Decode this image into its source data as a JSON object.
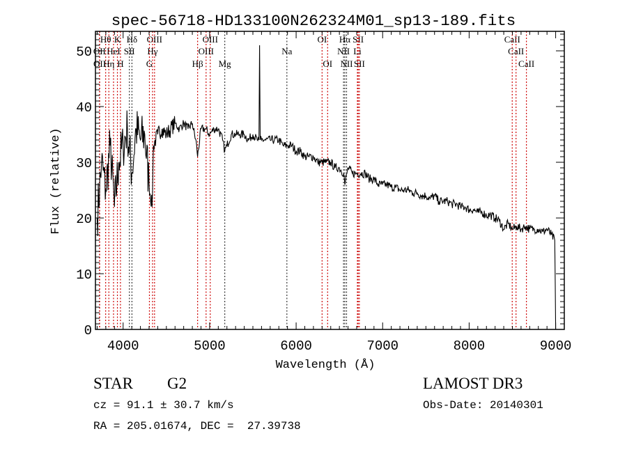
{
  "chart_data": {
    "type": "line",
    "title": "spec-56718-HD133100N262324M01_sp13-189.fits",
    "xlabel": "Wavelength (Å)",
    "ylabel": "Flux (relative)",
    "xlim": [
      3680,
      9100
    ],
    "ylim": [
      0,
      53.5
    ],
    "grid": false,
    "x_ticks": [
      "4000",
      "5000",
      "6000",
      "7000",
      "8000",
      "9000"
    ],
    "x_tick_values": [
      4000,
      5000,
      6000,
      7000,
      8000,
      9000
    ],
    "y_ticks": [
      "0",
      "10",
      "20",
      "30",
      "40",
      "50"
    ],
    "y_tick_values": [
      0,
      10,
      20,
      30,
      40,
      50
    ],
    "series": [
      {
        "name": "spectrum",
        "x": [
          3700,
          3750,
          3800,
          3850,
          3900,
          3950,
          4000,
          4050,
          4100,
          4150,
          4200,
          4250,
          4300,
          4335,
          4350,
          4400,
          4450,
          4500,
          4550,
          4600,
          4650,
          4700,
          4750,
          4800,
          4850,
          4861,
          4900,
          4950,
          5000,
          5050,
          5100,
          5150,
          5175,
          5200,
          5250,
          5300,
          5350,
          5400,
          5450,
          5500,
          5550,
          5570,
          5577,
          5585,
          5600,
          5650,
          5700,
          5750,
          5800,
          5850,
          5900,
          5950,
          6000,
          6050,
          6100,
          6150,
          6200,
          6250,
          6300,
          6350,
          6400,
          6450,
          6500,
          6550,
          6563,
          6600,
          6650,
          6700,
          6750,
          6800,
          6850,
          6900,
          6950,
          7000,
          7050,
          7100,
          7150,
          7200,
          7250,
          7300,
          7350,
          7400,
          7450,
          7500,
          7550,
          7600,
          7650,
          7700,
          7750,
          7800,
          7850,
          7900,
          7950,
          8000,
          8050,
          8100,
          8150,
          8200,
          8250,
          8300,
          8350,
          8400,
          8450,
          8500,
          8550,
          8600,
          8650,
          8700,
          8750,
          8800,
          8850,
          8900,
          8950,
          8990,
          9000
        ],
        "y": [
          20,
          30,
          25,
          33,
          22,
          30,
          33,
          36,
          28,
          36,
          34,
          35,
          26,
          22,
          33,
          35,
          36,
          35,
          36,
          37,
          36,
          37,
          36,
          37,
          33,
          31,
          36,
          36,
          35,
          36,
          36,
          34,
          32,
          33,
          35,
          35,
          35,
          35,
          34,
          35,
          34,
          34,
          51,
          34,
          34,
          34,
          34,
          34,
          34,
          33,
          33,
          33,
          32,
          32,
          31,
          31,
          31,
          30,
          30,
          30,
          30,
          29,
          29,
          28,
          26,
          29,
          28,
          28,
          28,
          28,
          27,
          27,
          26,
          26,
          26,
          25.5,
          25.5,
          25,
          25,
          25,
          24.5,
          24.5,
          24,
          24,
          23.5,
          24,
          23,
          23,
          23,
          22.5,
          22.5,
          22,
          22,
          21.5,
          21.5,
          21,
          21,
          20.5,
          20.5,
          20,
          19.5,
          18,
          19,
          18,
          18.5,
          18,
          18.5,
          18,
          18,
          18,
          17.5,
          18,
          17,
          16,
          0
        ]
      }
    ],
    "spectral_lines": [
      {
        "label": "Hθ",
        "wavelength": 3798,
        "row": 0,
        "color": "#cc0000"
      },
      {
        "label": "K",
        "wavelength": 3934,
        "row": 0,
        "color": "#cc0000"
      },
      {
        "label": "Hδ",
        "wavelength": 4102,
        "row": 0,
        "color": "#333333"
      },
      {
        "label": "OIII",
        "wavelength": 4363,
        "row": 0,
        "color": "#cc0000"
      },
      {
        "label": "OIII",
        "wavelength": 5007,
        "row": 0,
        "color": "#cc0000"
      },
      {
        "label": "OII",
        "wavelength": 3727,
        "row": 1,
        "color": "#cc0000"
      },
      {
        "label": "HeI",
        "wavelength": 3889,
        "row": 1,
        "color": "#cc0000"
      },
      {
        "label": "SII",
        "wavelength": 4072,
        "row": 1,
        "color": "#333333"
      },
      {
        "label": "Hγ",
        "wavelength": 4340,
        "row": 1,
        "color": "#cc0000"
      },
      {
        "label": "OIII",
        "wavelength": 4959,
        "row": 1,
        "color": "#cc0000"
      },
      {
        "label": "OII",
        "wavelength": 3729,
        "row": 2,
        "color": "#cc0000"
      },
      {
        "label": "Hη",
        "wavelength": 3835,
        "row": 2,
        "color": "#cc0000"
      },
      {
        "label": "H",
        "wavelength": 3969,
        "row": 2,
        "color": "#cc0000"
      },
      {
        "label": "G",
        "wavelength": 4304,
        "row": 2,
        "color": "#cc0000"
      },
      {
        "label": "Hβ",
        "wavelength": 4861,
        "row": 2,
        "color": "#cc0000"
      },
      {
        "label": "Mg",
        "wavelength": 5175,
        "row": 2,
        "color": "#333333"
      },
      {
        "label": "Na",
        "wavelength": 5893,
        "row": 1,
        "color": "#333333"
      },
      {
        "label": "OI",
        "wavelength": 6300,
        "row": 0,
        "color": "#cc0000"
      },
      {
        "label": "OI",
        "wavelength": 6364,
        "row": 2,
        "color": "#cc0000"
      },
      {
        "label": "Hα",
        "wavelength": 6563,
        "row": 0,
        "color": "#333333"
      },
      {
        "label": "NII",
        "wavelength": 6548,
        "row": 1,
        "color": "#333333"
      },
      {
        "label": "NII",
        "wavelength": 6583,
        "row": 2,
        "color": "#333333"
      },
      {
        "label": "SII",
        "wavelength": 6717,
        "row": 0,
        "color": "#cc0000"
      },
      {
        "label": "Li",
        "wavelength": 6708,
        "row": 1,
        "color": "#cc0000"
      },
      {
        "label": "SII",
        "wavelength": 6731,
        "row": 2,
        "color": "#cc0000"
      },
      {
        "label": "CaII",
        "wavelength": 8498,
        "row": 0,
        "color": "#cc0000"
      },
      {
        "label": "CaII",
        "wavelength": 8542,
        "row": 1,
        "color": "#cc0000"
      },
      {
        "label": "CaII",
        "wavelength": 8662,
        "row": 2,
        "color": "#cc0000"
      }
    ]
  },
  "info": {
    "object_class": "STAR",
    "subclass": "G2",
    "redshift": "cz = 91.1 ± 30.7 km/s",
    "coords": "RA = 205.01674, DEC =  27.39738",
    "survey": "LAMOST DR3",
    "obs_date": "Obs-Date: 20140301"
  }
}
